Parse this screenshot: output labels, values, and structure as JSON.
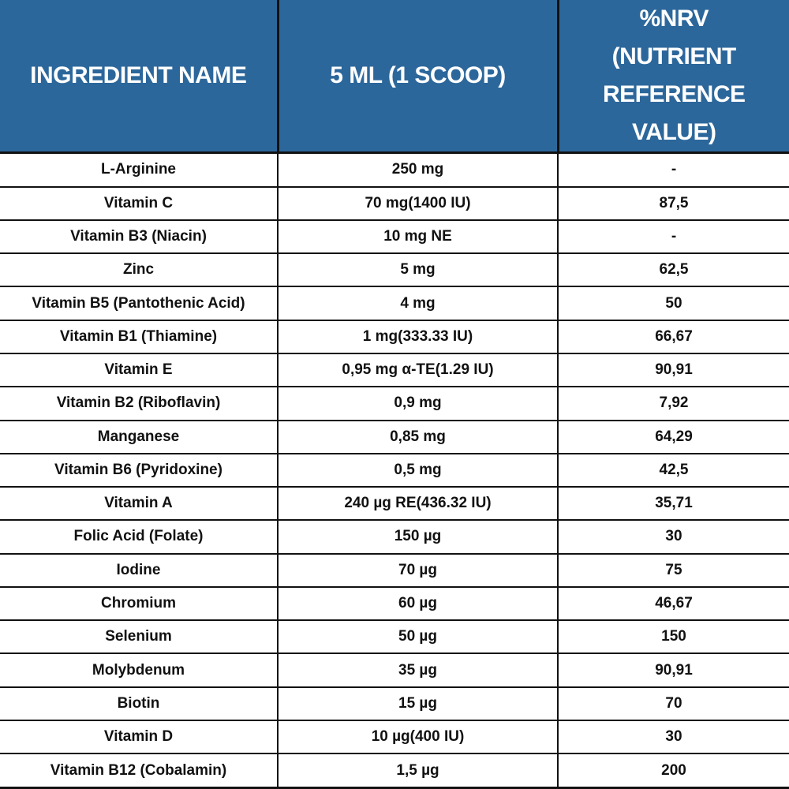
{
  "table": {
    "header": [
      "INGREDIENT NAME",
      "5 ML (1 SCOOP)",
      "%NRV (NUTRIENT REFERENCE VALUE)"
    ],
    "rows": [
      [
        "L-Arginine",
        "250 mg",
        "-"
      ],
      [
        "Vitamin C",
        "70 mg(1400 IU)",
        "87,5"
      ],
      [
        "Vitamin B3 (Niacin)",
        "10 mg NE",
        "-"
      ],
      [
        "Zinc",
        "5 mg",
        "62,5"
      ],
      [
        "Vitamin B5 (Pantothenic Acid)",
        "4 mg",
        "50"
      ],
      [
        "Vitamin B1 (Thiamine)",
        "1 mg(333.33 IU)",
        "66,67"
      ],
      [
        "Vitamin E",
        "0,95 mg α-TE(1.29 IU)",
        "90,91"
      ],
      [
        "Vitamin B2 (Riboflavin)",
        "0,9 mg",
        "7,92"
      ],
      [
        "Manganese",
        "0,85 mg",
        "64,29"
      ],
      [
        "Vitamin B6 (Pyridoxine)",
        "0,5 mg",
        "42,5"
      ],
      [
        "Vitamin A",
        "240 µg RE(436.32 IU)",
        "35,71"
      ],
      [
        "Folic Acid (Folate)",
        "150 µg",
        "30"
      ],
      [
        "Iodine",
        "70 µg",
        "75"
      ],
      [
        "Chromium",
        "60 µg",
        "46,67"
      ],
      [
        "Selenium",
        "50 µg",
        "150"
      ],
      [
        "Molybdenum",
        "35 µg",
        "90,91"
      ],
      [
        "Biotin",
        "15 µg",
        "70"
      ],
      [
        "Vitamin D",
        "10 µg(400 IU)",
        "30"
      ],
      [
        "Vitamin B12 (Cobalamin)",
        "1,5 µg",
        "200"
      ]
    ]
  }
}
